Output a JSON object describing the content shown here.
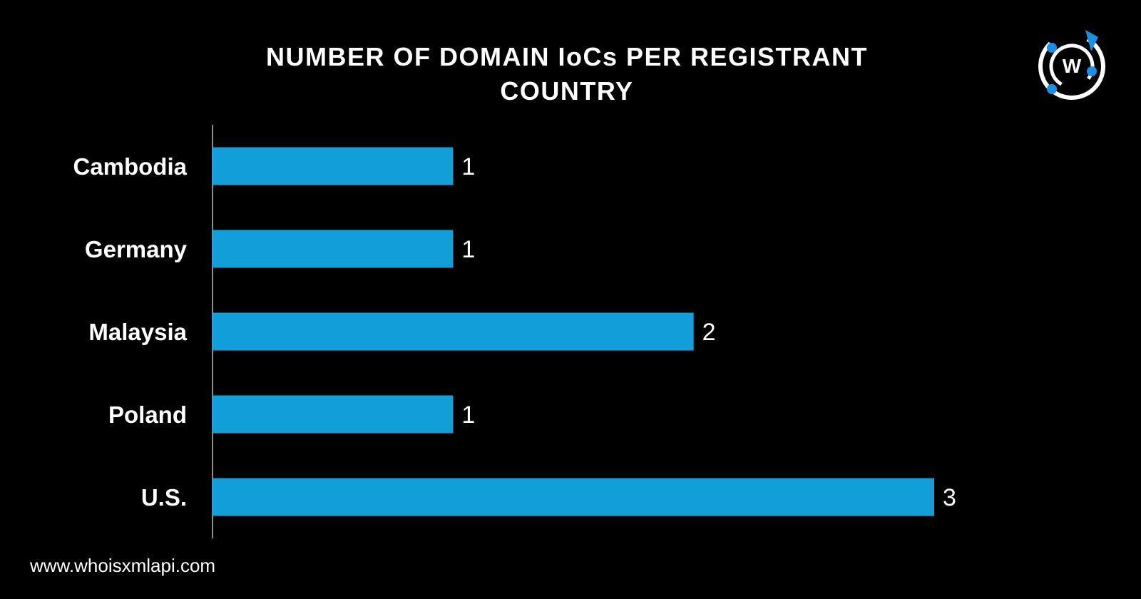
{
  "title_lines": [
    "NUMBER OF DOMAIN IoCs PER REGISTRANT",
    "COUNTRY"
  ],
  "footer": {
    "url": "www.whoisxmlapi.com"
  },
  "logo": {
    "icon": "whoisxmlapi-logo-icon",
    "letter": "W"
  },
  "colors": {
    "background": "#000000",
    "bar": "#129fd9",
    "text": "#ffffff",
    "axis": "#8c8c8c",
    "logo_accent": "#1a8fe3"
  },
  "chart_data": {
    "type": "bar",
    "orientation": "horizontal",
    "title": "NUMBER OF DOMAIN IoCs PER REGISTRANT COUNTRY",
    "categories": [
      "Cambodia",
      "Germany",
      "Malaysia",
      "Poland",
      "U.S."
    ],
    "values": [
      1,
      1,
      2,
      1,
      3
    ],
    "xlim": [
      0,
      3
    ],
    "data_labels": true,
    "grid": false,
    "legend": "none"
  }
}
